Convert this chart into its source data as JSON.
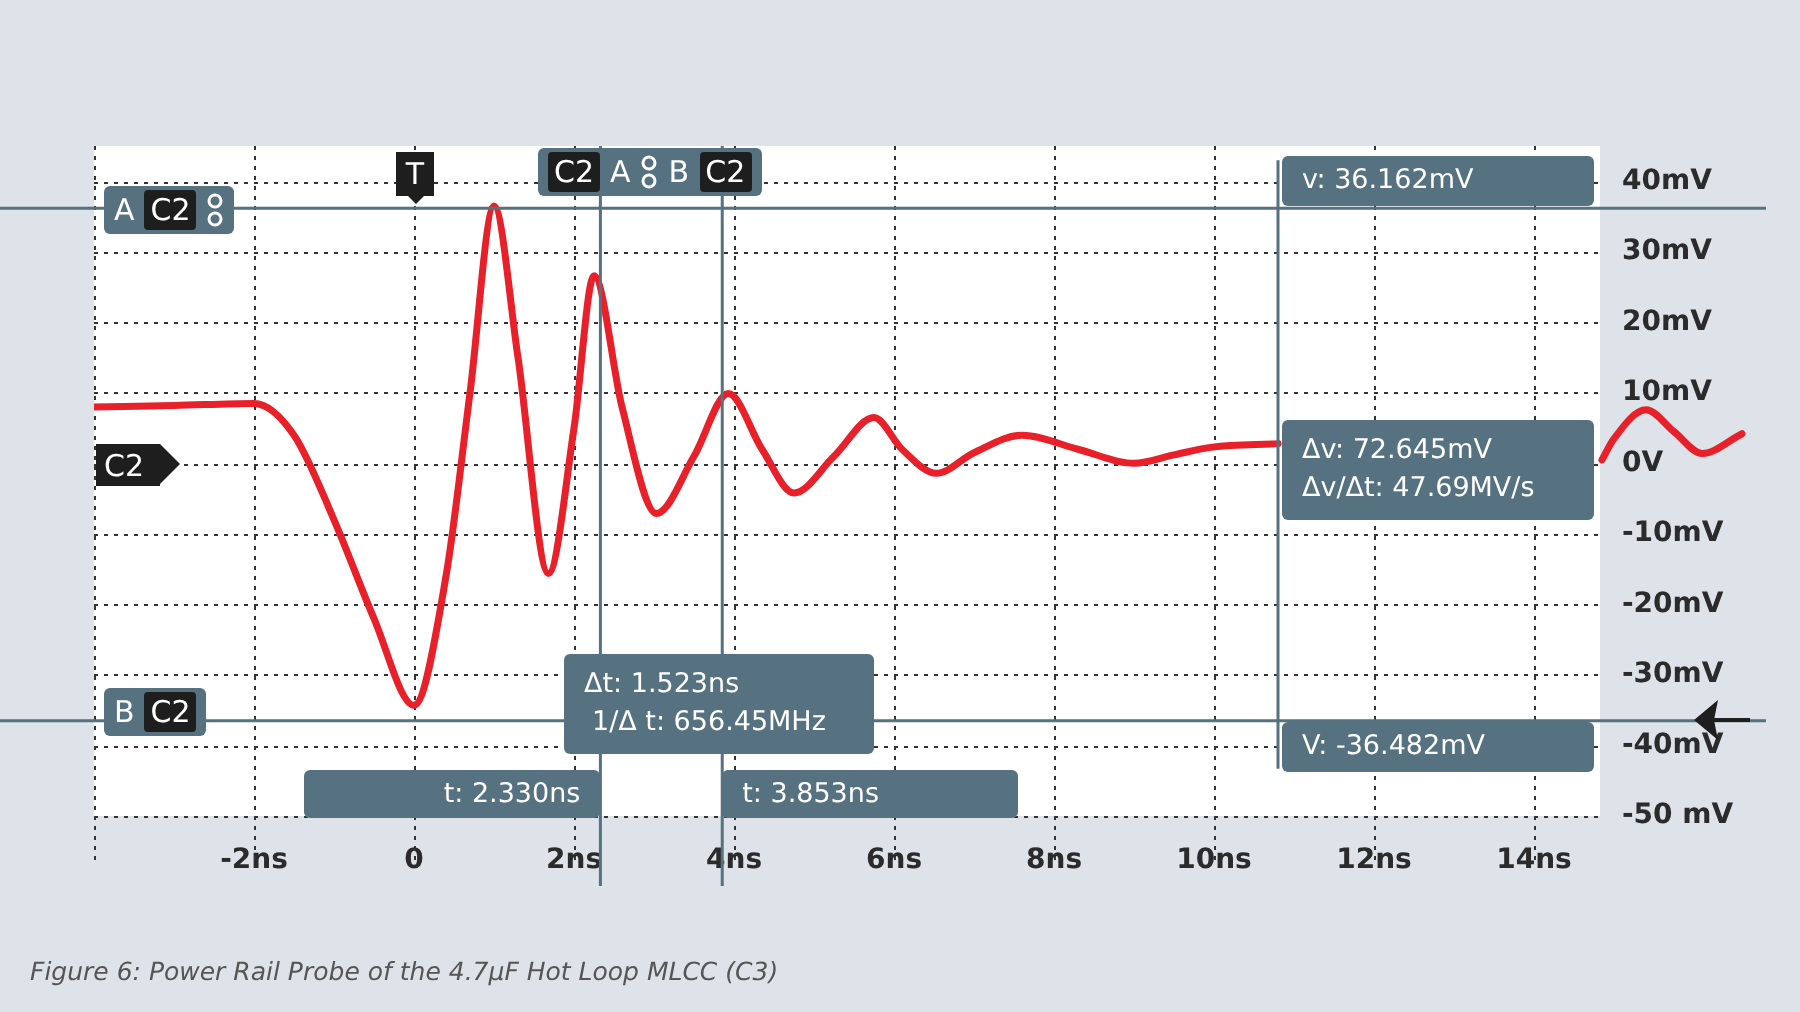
{
  "chart_data": {
    "type": "line",
    "x": [
      -4,
      -3,
      -2,
      -1.5,
      -1,
      -0.5,
      0,
      0.4,
      0.7,
      1.0,
      1.3,
      1.68,
      2.0,
      2.25,
      2.6,
      3.03,
      3.5,
      3.93,
      4.35,
      4.75,
      5.25,
      5.75,
      6.1,
      6.53,
      7.0,
      7.6,
      8.3,
      9.0,
      9.5,
      9.98,
      10.8,
      12.5,
      14.85,
      15.0,
      15.4,
      15.75,
      16.1,
      16.6
    ],
    "series": [
      {
        "color": "#e8202a",
        "values": [
          8,
          8.2,
          8.5,
          4,
          -8,
          -22,
          -34.3,
          -16,
          10,
          36.5,
          15,
          -15.6,
          5,
          26.6,
          8,
          -7.1,
          1,
          9.9,
          2,
          -4.2,
          1,
          6.5,
          2,
          -1.4,
          1.5,
          4.0,
          2,
          0,
          1.2,
          2.3,
          2.8,
          null,
          0.5,
          3.5,
          7.6,
          4.5,
          1.4,
          4.2
        ]
      }
    ],
    "xlim": [
      -4,
      16.9
    ],
    "ylim": [
      -50,
      45
    ],
    "xticks": [
      {
        "value": -2,
        "label": "-2ns"
      },
      {
        "value": 0,
        "label": "0"
      },
      {
        "value": 2,
        "label": "2ns"
      },
      {
        "value": 4,
        "label": "4ns"
      },
      {
        "value": 6,
        "label": "6ns"
      },
      {
        "value": 8,
        "label": "8ns"
      },
      {
        "value": 10,
        "label": "10ns"
      },
      {
        "value": 12,
        "label": "12ns"
      },
      {
        "value": 14,
        "label": "14ns"
      }
    ],
    "yticks": [
      {
        "value": 40,
        "label": "40mV"
      },
      {
        "value": 30,
        "label": "30mV"
      },
      {
        "value": 20,
        "label": "20mV"
      },
      {
        "value": 10,
        "label": "10mV"
      },
      {
        "value": 0,
        "label": "0V"
      },
      {
        "value": -10,
        "label": "-10mV"
      },
      {
        "value": -20,
        "label": "-20mV"
      },
      {
        "value": -30,
        "label": "-30mV"
      },
      {
        "value": -40,
        "label": "-40mV"
      },
      {
        "value": -50,
        "label": "-50 mV"
      }
    ],
    "grid": true,
    "legend": false,
    "marker": "none",
    "line_style": "solid",
    "ref_lines": [
      {
        "axis": "y",
        "value": 36.162,
        "label": "v: 36.162mV",
        "color": "#56717f"
      },
      {
        "axis": "y",
        "value": -36.482,
        "label": "V: -36.482mV",
        "color": "#56717f"
      },
      {
        "axis": "x",
        "value": 2.33,
        "label": "t: 2.330ns",
        "color": "#56717f"
      },
      {
        "axis": "x",
        "value": 3.853,
        "label": "t: 3.853ns",
        "color": "#56717f"
      },
      {
        "axis": "x",
        "value": 10.8,
        "color": "#56717f"
      }
    ],
    "annotations": [
      "T",
      "C2",
      "A",
      "B",
      "C2",
      "A",
      "C2",
      "B",
      "C2",
      "C2",
      "Δv: 72.645mV",
      "Δv/Δt: 47.69MV/s",
      "Δt: 1.523ns",
      "1/Δ t: 656.45MHz",
      "Figure 6: Power Rail Probe of the 4.7μF Hot Loop MLCC (C3)"
    ]
  }
}
